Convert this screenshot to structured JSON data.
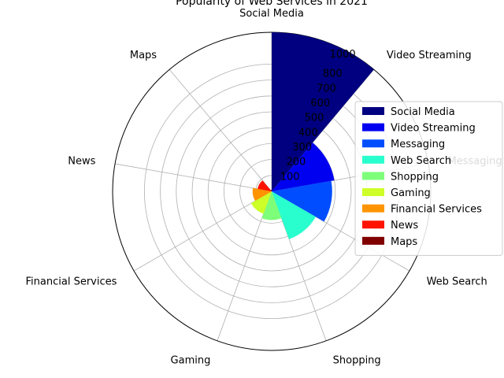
{
  "chart_data": {
    "type": "polar-bar",
    "title": "Popularity of Web Services in 2021",
    "categories": [
      "Social Media",
      "Video Streaming",
      "Messaging",
      "Web Search",
      "Shopping",
      "Gaming",
      "Financial Services",
      "News",
      "Maps"
    ],
    "values": [
      1000,
      400,
      380,
      320,
      180,
      150,
      120,
      90,
      10
    ],
    "colors": [
      "#000080",
      "#0000f1",
      "#004dff",
      "#29ffce",
      "#7dff7a",
      "#ceff29",
      "#ff9400",
      "#ff1300",
      "#800000"
    ],
    "radial_ticks": [
      "100",
      "200",
      "300",
      "400",
      "500",
      "600",
      "700",
      "800"
    ],
    "radial_tick_values": [
      100,
      200,
      300,
      400,
      500,
      600,
      700,
      800
    ],
    "outer_tick_label": "1000",
    "rmax": 1000,
    "grid": true,
    "legend": {
      "placement": "center-right",
      "entries": [
        "Social Media",
        "Video Streaming",
        "Messaging",
        "Web Search",
        "Shopping",
        "Gaming",
        "Financial Services",
        "News",
        "Maps"
      ]
    }
  }
}
